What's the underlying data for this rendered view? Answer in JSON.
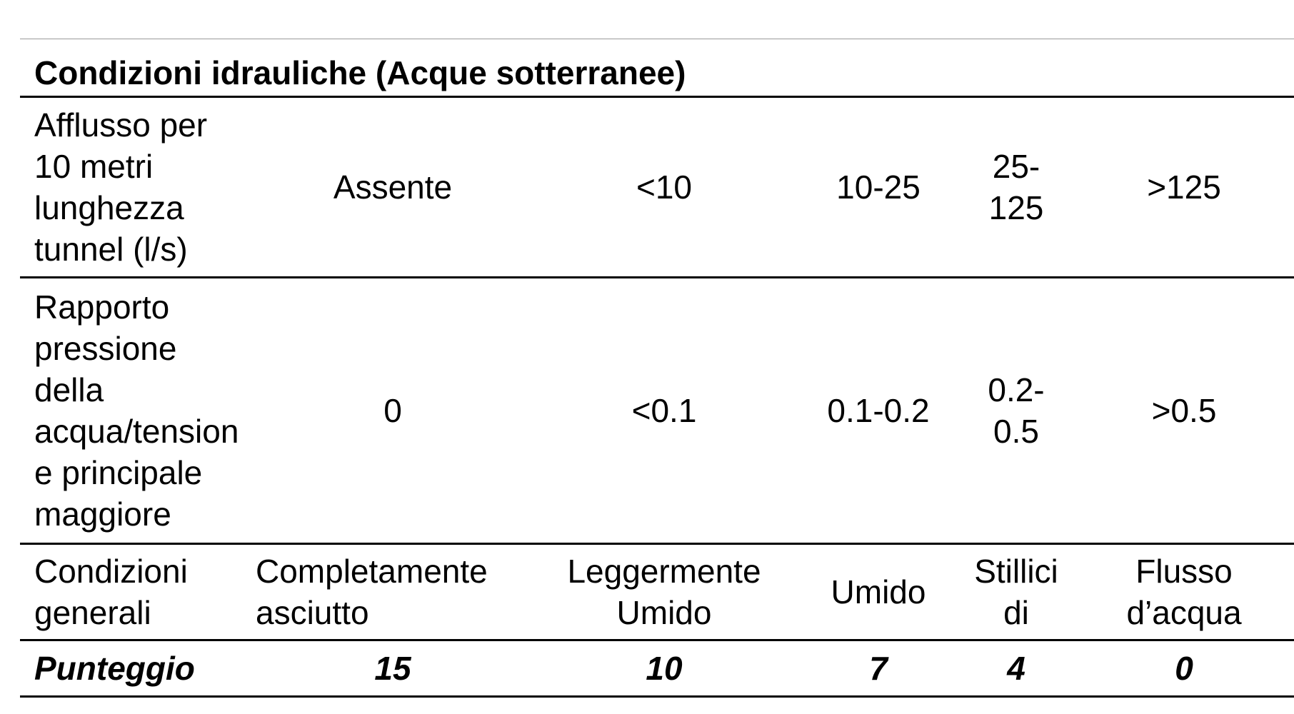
{
  "table": {
    "title": "Condizioni idrauliche (Acque sotterranee)",
    "rows": [
      {
        "label_lines": [
          "Afflusso per",
          "10 metri",
          "lunghezza",
          "tunnel (l/s)"
        ],
        "values": [
          [
            "Assente"
          ],
          [
            "<10"
          ],
          [
            "10-25"
          ],
          [
            "25-",
            "125"
          ],
          [
            ">125"
          ]
        ]
      },
      {
        "label_lines": [
          "Rapporto",
          "pressione",
          "della",
          "acqua/tension",
          "e principale",
          "maggiore"
        ],
        "values": [
          [
            "0"
          ],
          [
            "<0.1"
          ],
          [
            "0.1-0.2"
          ],
          [
            "0.2-",
            "0.5"
          ],
          [
            ">0.5"
          ]
        ]
      },
      {
        "label_lines": [
          "Condizioni",
          "generali"
        ],
        "values": [
          [
            "Completamente",
            "asciutto"
          ],
          [
            "Leggermente",
            "Umido"
          ],
          [
            "Umido"
          ],
          [
            "Stillici",
            "di"
          ],
          [
            "Flusso",
            "d’acqua"
          ]
        ]
      }
    ],
    "score": {
      "label": "Punteggio",
      "values": [
        "15",
        "10",
        "7",
        "4",
        "0"
      ]
    }
  }
}
